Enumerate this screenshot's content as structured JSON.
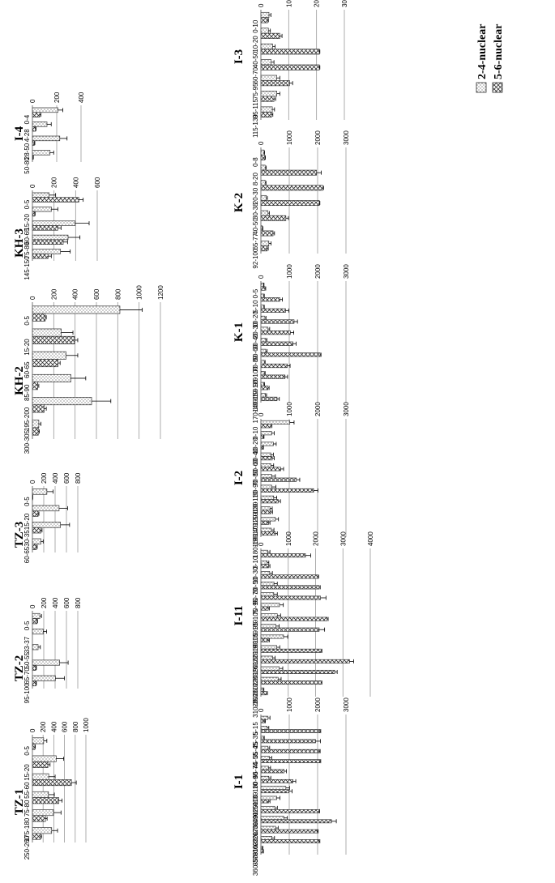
{
  "legend": {
    "series_a": "2-4-nuclear",
    "series_b": "5-6-nuclear"
  },
  "colors": {
    "bar_stroke": "#333333",
    "grid": "#999999",
    "error_bar": "#000000"
  },
  "chart_data": [
    {
      "id": "I-3",
      "type": "bar",
      "title": "I-3",
      "ylim": [
        0,
        3000
      ],
      "yticks": [
        0,
        1000,
        2000,
        3000
      ],
      "categories": [
        "0-10",
        "10-20",
        "40-50",
        "60-70",
        "75-95",
        "95-115",
        "115-130"
      ],
      "series": [
        {
          "name": "2-4-nuclear",
          "values": [
            290,
            270,
            420,
            370,
            570,
            570,
            410
          ],
          "errors": [
            70,
            70,
            90,
            100,
            110,
            110,
            80
          ]
        },
        {
          "name": "5-6-nuclear",
          "values": [
            240,
            680,
            2100,
            2100,
            1030,
            470,
            380
          ],
          "errors": [
            30,
            80,
            20,
            20,
            110,
            60,
            50
          ]
        }
      ]
    },
    {
      "id": "K-2",
      "type": "bar",
      "title": "K-2",
      "ylim": [
        0,
        3000
      ],
      "yticks": [
        0,
        1000,
        2000,
        3000
      ],
      "categories": [
        "0-8",
        "8-20",
        "20-30",
        "30-38",
        "40-50",
        "65-77",
        "92-100"
      ],
      "series": [
        {
          "name": "2-4-nuclear",
          "values": [
            110,
            150,
            150,
            190,
            250,
            50,
            280
          ],
          "errors": [
            20,
            40,
            30,
            40,
            50,
            20,
            80
          ]
        },
        {
          "name": "5-6-nuclear",
          "values": [
            140,
            1960,
            2180,
            2060,
            880,
            430,
            220
          ],
          "errors": [
            20,
            170,
            30,
            20,
            90,
            50,
            40
          ]
        }
      ]
    },
    {
      "id": "K-1",
      "type": "bar",
      "title": "K-1",
      "ylim": [
        0,
        3000
      ],
      "yticks": [
        0,
        1000,
        2000,
        3000
      ],
      "categories": [
        "0-5",
        "5-10",
        "10-20",
        "20-30",
        "30-40",
        "50-60",
        "70-80",
        "90-100",
        "110-120",
        "140-150",
        "170-180"
      ],
      "series": [
        {
          "name": "2-4-nuclear",
          "values": [
            90,
            100,
            100,
            140,
            250,
            170,
            170,
            120,
            120,
            100,
            160
          ],
          "errors": [
            20,
            20,
            20,
            40,
            60,
            40,
            50,
            30,
            30,
            30,
            40
          ]
        },
        {
          "name": "5-6-nuclear",
          "values": [
            140,
            670,
            870,
            1170,
            1040,
            1130,
            2090,
            930,
            850,
            250,
            570
          ],
          "errors": [
            30,
            90,
            110,
            120,
            120,
            110,
            30,
            100,
            90,
            40,
            80
          ]
        }
      ]
    },
    {
      "id": "I-2",
      "type": "bar",
      "title": "I-2",
      "ylim": [
        0,
        3000
      ],
      "yticks": [
        0,
        1000,
        2000,
        3000
      ],
      "categories": [
        "0-10",
        "10-20",
        "30-40",
        "50-60",
        "70-80",
        "80-90",
        "100-110",
        "120-130",
        "140-150",
        "160-170",
        "180-190"
      ],
      "series": [
        {
          "name": "2-4-nuclear",
          "values": [
            1020,
            380,
            440,
            350,
            350,
            380,
            380,
            450,
            320,
            510,
            370
          ],
          "errors": [
            150,
            90,
            100,
            90,
            100,
            130,
            150,
            110,
            80,
            110,
            90
          ]
        },
        {
          "name": "5-6-nuclear",
          "values": [
            340,
            90,
            70,
            400,
            700,
            1250,
            1860,
            610,
            350,
            270,
            510
          ],
          "errors": [
            50,
            20,
            20,
            70,
            100,
            120,
            150,
            80,
            60,
            50,
            70
          ]
        }
      ]
    },
    {
      "id": "I-11",
      "type": "bar",
      "title": "I-11",
      "ylim": [
        0,
        4000
      ],
      "yticks": [
        0,
        1000,
        2000,
        3000,
        4000
      ],
      "categories": [
        "3-10",
        "10-30",
        "30-50",
        "50-70",
        "70-95",
        "95-105",
        "105-130",
        "130-160",
        "160-190",
        "190-220",
        "220-260",
        "260-280",
        "280-310",
        "310-350"
      ],
      "series": [
        {
          "name": "2-4-nuclear",
          "values": [
            250,
            230,
            320,
            480,
            470,
            680,
            600,
            550,
            830,
            580,
            430,
            670,
            630,
            80
          ],
          "errors": [
            80,
            60,
            100,
            120,
            130,
            140,
            120,
            120,
            150,
            110,
            90,
            130,
            110,
            30
          ]
        },
        {
          "name": "5-6-nuclear",
          "values": [
            1630,
            280,
            2080,
            2130,
            2180,
            270,
            2420,
            2130,
            270,
            2200,
            3240,
            2700,
            2200,
            200
          ],
          "errors": [
            190,
            50,
            30,
            40,
            200,
            40,
            40,
            200,
            40,
            30,
            150,
            90,
            30,
            40
          ]
        }
      ]
    },
    {
      "id": "I-1",
      "type": "bar",
      "title": "I-1",
      "ylim": [
        0,
        3000
      ],
      "yticks": [
        0,
        1000,
        2000,
        3000
      ],
      "categories": [
        "5-15",
        "25-35",
        "35-45",
        "45-55",
        "65-74",
        "80-90",
        "100-110",
        "120-130",
        "140-150",
        "170-190",
        "220-230",
        "310-320",
        "350-360",
        "360-370"
      ],
      "series": [
        {
          "name": "2-4-nuclear",
          "values": [
            250,
            220,
            90,
            250,
            300,
            270,
            280,
            880,
            560,
            490,
            810,
            520,
            390,
            50
          ],
          "errors": [
            70,
            60,
            30,
            60,
            80,
            70,
            70,
            130,
            110,
            90,
            120,
            90,
            90,
            20
          ]
        },
        {
          "name": "5-6-nuclear",
          "values": [
            130,
            2080,
            1930,
            2060,
            2080,
            820,
            1130,
            990,
            270,
            2040,
            2490,
            1990,
            2050,
            70
          ],
          "errors": [
            30,
            30,
            170,
            30,
            30,
            80,
            100,
            110,
            50,
            30,
            170,
            30,
            30,
            20
          ]
        }
      ]
    },
    {
      "id": "I-4",
      "type": "bar",
      "title": "I-4",
      "ylim": [
        0,
        400
      ],
      "yticks": [
        0,
        200,
        400
      ],
      "categories": [
        "0-4",
        "4-28",
        "28-50",
        "50-80"
      ],
      "series": [
        {
          "name": "2-4-nuclear",
          "values": [
            210,
            120,
            225,
            145
          ],
          "errors": [
            40,
            35,
            60,
            30
          ]
        },
        {
          "name": "5-6-nuclear",
          "values": [
            60,
            25,
            15,
            5
          ],
          "errors": [
            10,
            5,
            5,
            3
          ]
        }
      ]
    },
    {
      "id": "KH-3",
      "type": "bar",
      "title": "KH-3",
      "ylim": [
        0,
        600
      ],
      "yticks": [
        0,
        200,
        400,
        600
      ],
      "categories": [
        "0-5",
        "15-20",
        "60-65",
        "75-80",
        "145-150"
      ],
      "series": [
        {
          "name": "2-4-nuclear",
          "values": [
            155,
            175,
            395,
            330,
            260
          ],
          "errors": [
            60,
            60,
            130,
            110,
            90
          ]
        },
        {
          "name": "5-6-nuclear",
          "values": [
            430,
            20,
            235,
            285,
            145
          ],
          "errors": [
            40,
            5,
            30,
            40,
            30
          ]
        }
      ]
    },
    {
      "id": "KH-2",
      "type": "bar",
      "title": "KH-2",
      "ylim": [
        0,
        1200
      ],
      "yticks": [
        0,
        200,
        400,
        600,
        800,
        1000,
        1200
      ],
      "categories": [
        "0-5",
        "15-20",
        "60-65",
        "85-90",
        "195-200",
        "300-305"
      ],
      "series": [
        {
          "name": "2-4-nuclear",
          "values": [
            820,
            270,
            315,
            360,
            555,
            60
          ],
          "errors": [
            210,
            110,
            110,
            140,
            180,
            20
          ]
        },
        {
          "name": "5-6-nuclear",
          "values": [
            120,
            395,
            240,
            50,
            110,
            55
          ],
          "errors": [
            10,
            30,
            20,
            10,
            20,
            10
          ]
        }
      ]
    },
    {
      "id": "TZ-3",
      "type": "bar",
      "title": "TZ-3",
      "ylim": [
        0,
        800
      ],
      "yticks": [
        0,
        200,
        400,
        600,
        800
      ],
      "categories": [
        "0-5",
        "15-20",
        "30-35",
        "60-65"
      ],
      "series": [
        {
          "name": "2-4-nuclear",
          "values": [
            255,
            470,
            495,
            150
          ],
          "errors": [
            110,
            150,
            160,
            40
          ]
        },
        {
          "name": "5-6-nuclear",
          "values": [
            5,
            100,
            150,
            70
          ],
          "errors": [
            3,
            15,
            20,
            15
          ]
        }
      ]
    },
    {
      "id": "TZ-2",
      "type": "bar",
      "title": "TZ-2",
      "ylim": [
        0,
        800
      ],
      "yticks": [
        0,
        200,
        400,
        600,
        800
      ],
      "categories": [
        "0-5",
        "33-37",
        "50-55",
        "65-70",
        "95-100"
      ],
      "series": [
        {
          "name": "2-4-nuclear",
          "values": [
            130,
            190,
            100,
            480,
            405
          ],
          "errors": [
            30,
            60,
            40,
            150,
            160
          ]
        },
        {
          "name": "5-6-nuclear",
          "values": [
            80,
            0,
            0,
            60,
            60
          ],
          "errors": [
            10,
            0,
            0,
            10,
            10
          ]
        }
      ]
    },
    {
      "id": "TZ-1",
      "type": "bar",
      "title": "TZ-1",
      "ylim": [
        0,
        1000
      ],
      "yticks": [
        0,
        200,
        400,
        600,
        800,
        1000
      ],
      "categories": [
        "0-5",
        "15-20",
        "55-60",
        "75-80",
        "175-180",
        "250-260"
      ],
      "series": [
        {
          "name": "2-4-nuclear",
          "values": [
            210,
            445,
            305,
            300,
            395,
            360
          ],
          "errors": [
            60,
            140,
            120,
            110,
            140,
            110
          ]
        },
        {
          "name": "5-6-nuclear",
          "values": [
            45,
            290,
            730,
            495,
            245,
            150
          ],
          "errors": [
            10,
            40,
            90,
            60,
            30,
            20
          ]
        }
      ]
    }
  ]
}
